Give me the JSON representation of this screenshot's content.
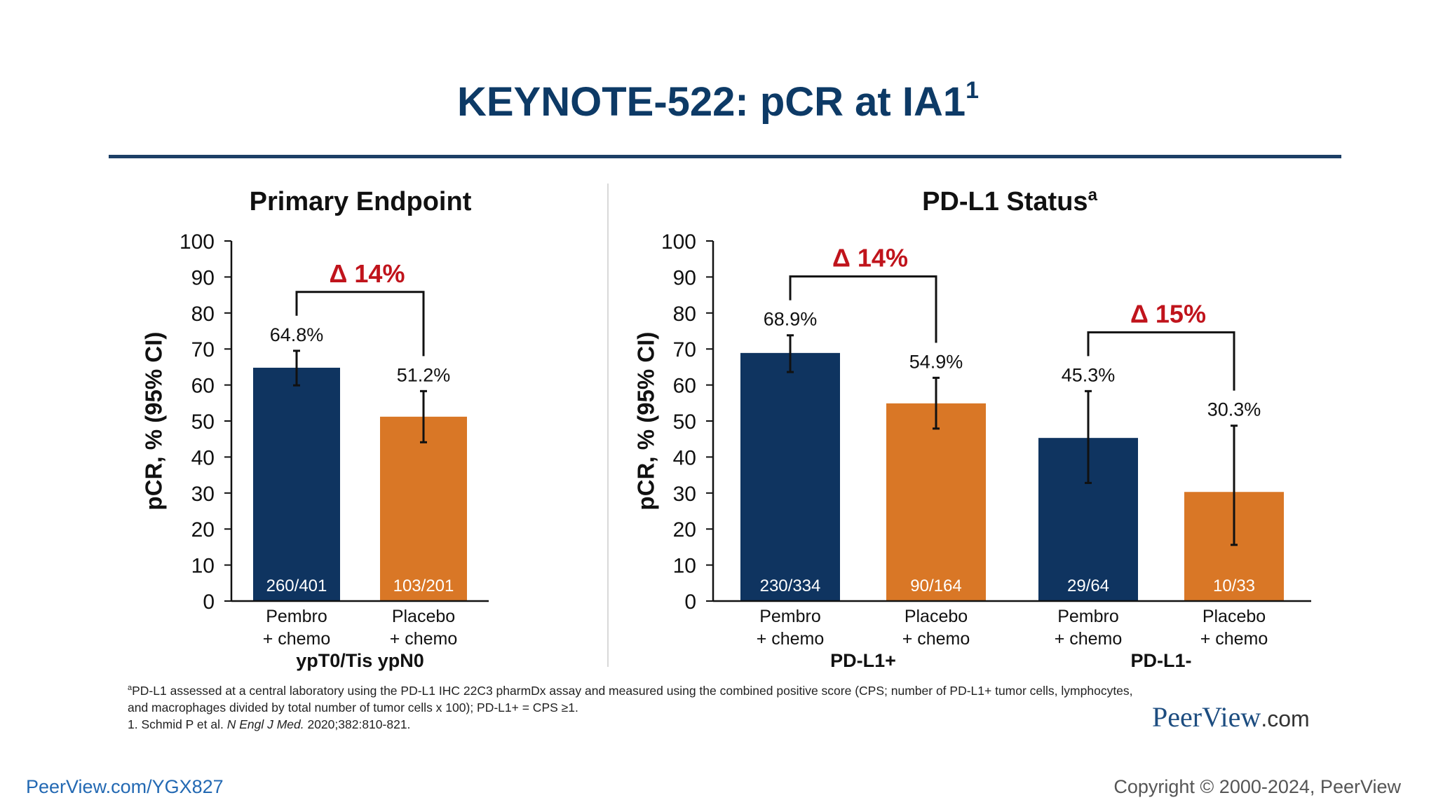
{
  "slide": {
    "title": "KEYNOTE-522: pCR at IA1",
    "title_sup": "1"
  },
  "colors": {
    "pembro": "#0f3460",
    "placebo": "#d97726",
    "delta": "#c0141c",
    "title": "#0d3a66"
  },
  "chart_data": [
    {
      "type": "bar",
      "title": "Primary Endpoint",
      "ylabel": "pCR, % (95% CI)",
      "ylim": [
        0,
        100
      ],
      "yticks": [
        0,
        10,
        20,
        30,
        40,
        50,
        60,
        70,
        80,
        90,
        100
      ],
      "group_labels": [
        "ypT0/Tis ypN0"
      ],
      "bars": [
        {
          "category": [
            "Pembro",
            "+ chemo"
          ],
          "value": 64.8,
          "label": "64.8%",
          "ci": [
            59.9,
            69.5
          ],
          "n_label": "260/401",
          "color": "#0f3460"
        },
        {
          "category": [
            "Placebo",
            "+ chemo"
          ],
          "value": 51.2,
          "label": "51.2%",
          "ci": [
            44.1,
            58.3
          ],
          "n_label": "103/201",
          "color": "#d97726"
        }
      ],
      "deltas": [
        {
          "label": "Δ 14%",
          "bars": [
            0,
            1
          ]
        }
      ]
    },
    {
      "type": "bar",
      "title": "PD-L1 Status",
      "title_sup": "a",
      "ylabel": "pCR, % (95% CI)",
      "ylim": [
        0,
        100
      ],
      "yticks": [
        0,
        10,
        20,
        30,
        40,
        50,
        60,
        70,
        80,
        90,
        100
      ],
      "group_labels": [
        "PD-L1+",
        "PD-L1-"
      ],
      "bars": [
        {
          "category": [
            "Pembro",
            "+ chemo"
          ],
          "value": 68.9,
          "label": "68.9%",
          "ci": [
            63.6,
            73.8
          ],
          "n_label": "230/334",
          "color": "#0f3460"
        },
        {
          "category": [
            "Placebo",
            "+ chemo"
          ],
          "value": 54.9,
          "label": "54.9%",
          "ci": [
            47.9,
            62.0
          ],
          "n_label": "90/164",
          "color": "#d97726"
        },
        {
          "category": [
            "Pembro",
            "+ chemo"
          ],
          "value": 45.3,
          "label": "45.3%",
          "ci": [
            32.8,
            58.3
          ],
          "n_label": "29/64",
          "color": "#0f3460"
        },
        {
          "category": [
            "Placebo",
            "+ chemo"
          ],
          "value": 30.3,
          "label": "30.3%",
          "ci": [
            15.6,
            48.7
          ],
          "n_label": "10/33",
          "color": "#d97726"
        }
      ],
      "deltas": [
        {
          "label": "Δ 14%",
          "bars": [
            0,
            1
          ]
        },
        {
          "label": "Δ 15%",
          "bars": [
            2,
            3
          ]
        }
      ]
    }
  ],
  "footnotes": {
    "a_marker": "a",
    "a_line1": "PD-L1 assessed at a central laboratory using the PD-L1 IHC 22C3 pharmDx assay and measured using the combined positive score (CPS; number of PD-L1+ tumor cells, lymphocytes,",
    "a_line2": "and macrophages divided by total number of tumor cells x 100); PD-L1+ = CPS ≥1.",
    "ref_prefix": "1. Schmid P et al. ",
    "ref_journal": "N Engl J Med.",
    "ref_suffix": " 2020;382:810-821."
  },
  "brand": {
    "logo_main": "PeerView",
    "logo_suffix": ".com"
  },
  "footer": {
    "link": "PeerView.com/YGX827",
    "copyright": "Copyright © 2000-2024, PeerView"
  }
}
